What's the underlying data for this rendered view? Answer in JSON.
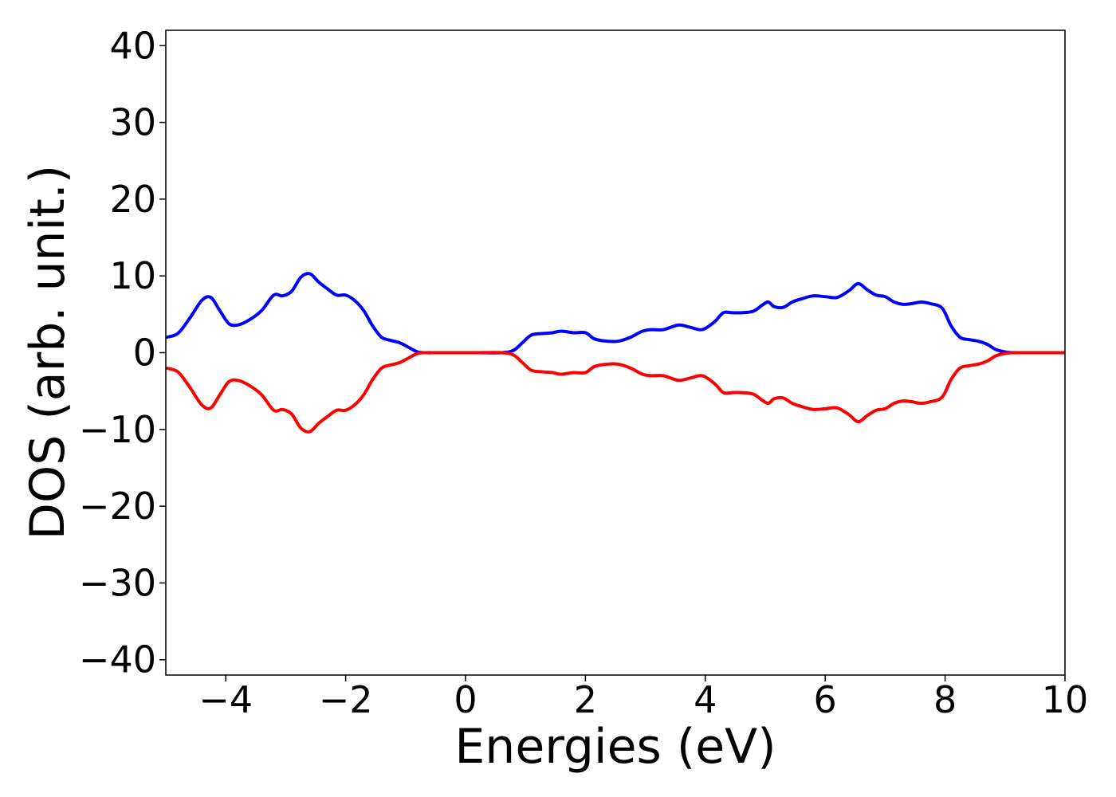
{
  "chart_data": {
    "type": "line",
    "title": "",
    "xlabel": "Energies (eV)",
    "ylabel": "DOS (arb. unit.)",
    "xlim": [
      -5,
      10
    ],
    "ylim": [
      -42,
      42
    ],
    "xticks": [
      -4,
      -2,
      0,
      2,
      4,
      6,
      8,
      10
    ],
    "xtick_labels": [
      "−4",
      "−2",
      "0",
      "2",
      "4",
      "6",
      "8",
      "10"
    ],
    "yticks": [
      -40,
      -30,
      -20,
      -10,
      0,
      10,
      20,
      30,
      40
    ],
    "ytick_labels": [
      "−40",
      "−30",
      "−20",
      "−10",
      "0",
      "10",
      "20",
      "30",
      "40"
    ],
    "grid": false,
    "legend": "none",
    "series": [
      {
        "color": "#0000ff",
        "x": [
          -5.0,
          -4.8,
          -4.6,
          -4.4,
          -4.25,
          -4.1,
          -3.95,
          -3.8,
          -3.6,
          -3.4,
          -3.2,
          -3.05,
          -2.9,
          -2.75,
          -2.6,
          -2.45,
          -2.3,
          -2.15,
          -2.0,
          -1.85,
          -1.7,
          -1.55,
          -1.4,
          -1.25,
          -1.1,
          -0.95,
          -0.8,
          -0.65,
          -0.5,
          -0.2,
          0.2,
          0.6,
          0.8,
          0.95,
          1.1,
          1.3,
          1.45,
          1.6,
          1.8,
          2.0,
          2.15,
          2.35,
          2.55,
          2.75,
          2.95,
          3.1,
          3.3,
          3.55,
          3.75,
          3.95,
          4.15,
          4.3,
          4.45,
          4.6,
          4.8,
          4.95,
          5.05,
          5.15,
          5.3,
          5.45,
          5.6,
          5.8,
          6.0,
          6.2,
          6.4,
          6.55,
          6.7,
          6.85,
          7.0,
          7.15,
          7.3,
          7.45,
          7.6,
          7.75,
          7.95,
          8.1,
          8.25,
          8.4,
          8.55,
          8.7,
          8.85,
          9.0,
          9.15,
          9.3,
          10.0
        ],
        "y": [
          2.0,
          2.5,
          4.5,
          6.8,
          7.2,
          5.5,
          3.8,
          3.6,
          4.3,
          5.5,
          7.5,
          7.4,
          8.0,
          9.8,
          10.3,
          9.2,
          8.3,
          7.5,
          7.5,
          6.8,
          5.5,
          3.5,
          2.0,
          1.6,
          1.3,
          0.7,
          0.1,
          0.0,
          0.0,
          0.0,
          0.0,
          0.0,
          0.3,
          1.3,
          2.3,
          2.5,
          2.6,
          2.8,
          2.6,
          2.6,
          1.8,
          1.5,
          1.5,
          2.0,
          2.8,
          3.0,
          3.0,
          3.6,
          3.3,
          3.0,
          4.0,
          5.2,
          5.2,
          5.2,
          5.4,
          6.2,
          6.6,
          6.0,
          5.9,
          6.6,
          7.0,
          7.4,
          7.3,
          7.2,
          8.1,
          9.0,
          8.2,
          7.5,
          7.3,
          6.6,
          6.3,
          6.4,
          6.6,
          6.4,
          5.8,
          3.5,
          2.0,
          1.7,
          1.5,
          1.1,
          0.4,
          0.1,
          0.0,
          0.0,
          0.0
        ]
      },
      {
        "color": "#ff0000",
        "x": [
          -5.0,
          -4.8,
          -4.6,
          -4.4,
          -4.25,
          -4.1,
          -3.95,
          -3.8,
          -3.6,
          -3.4,
          -3.2,
          -3.05,
          -2.9,
          -2.75,
          -2.6,
          -2.45,
          -2.3,
          -2.15,
          -2.0,
          -1.85,
          -1.7,
          -1.55,
          -1.4,
          -1.25,
          -1.1,
          -0.95,
          -0.8,
          -0.65,
          -0.5,
          -0.2,
          0.2,
          0.6,
          0.8,
          0.95,
          1.1,
          1.3,
          1.45,
          1.6,
          1.8,
          2.0,
          2.15,
          2.35,
          2.55,
          2.75,
          2.95,
          3.1,
          3.3,
          3.55,
          3.75,
          3.95,
          4.15,
          4.3,
          4.45,
          4.6,
          4.8,
          4.95,
          5.05,
          5.15,
          5.3,
          5.45,
          5.6,
          5.8,
          6.0,
          6.2,
          6.4,
          6.55,
          6.7,
          6.85,
          7.0,
          7.15,
          7.3,
          7.45,
          7.6,
          7.75,
          7.95,
          8.1,
          8.25,
          8.4,
          8.55,
          8.7,
          8.85,
          9.0,
          9.15,
          9.3,
          10.0
        ],
        "y": [
          -2.0,
          -2.5,
          -4.5,
          -6.8,
          -7.2,
          -5.5,
          -3.8,
          -3.6,
          -4.3,
          -5.5,
          -7.5,
          -7.4,
          -8.0,
          -9.8,
          -10.3,
          -9.2,
          -8.3,
          -7.5,
          -7.5,
          -6.8,
          -5.5,
          -3.5,
          -2.0,
          -1.6,
          -1.3,
          -0.7,
          -0.1,
          0.0,
          0.0,
          0.0,
          0.0,
          0.0,
          -0.3,
          -1.3,
          -2.3,
          -2.5,
          -2.6,
          -2.8,
          -2.6,
          -2.6,
          -1.8,
          -1.5,
          -1.5,
          -2.0,
          -2.8,
          -3.0,
          -3.0,
          -3.6,
          -3.3,
          -3.0,
          -4.0,
          -5.2,
          -5.2,
          -5.2,
          -5.4,
          -6.2,
          -6.6,
          -6.0,
          -5.9,
          -6.6,
          -7.0,
          -7.4,
          -7.3,
          -7.2,
          -8.1,
          -9.0,
          -8.2,
          -7.5,
          -7.3,
          -6.6,
          -6.3,
          -6.4,
          -6.6,
          -6.4,
          -5.8,
          -3.5,
          -2.0,
          -1.7,
          -1.5,
          -1.1,
          -0.4,
          -0.1,
          0.0,
          0.0,
          0.0
        ]
      }
    ]
  }
}
